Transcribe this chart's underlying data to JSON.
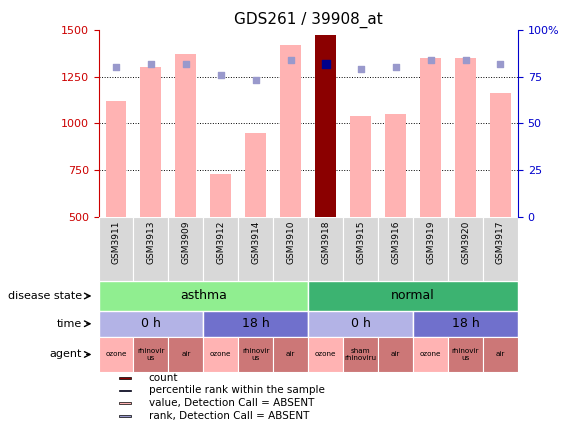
{
  "title": "GDS261 / 39908_at",
  "samples": [
    "GSM3911",
    "GSM3913",
    "GSM3909",
    "GSM3912",
    "GSM3914",
    "GSM3910",
    "GSM3918",
    "GSM3915",
    "GSM3916",
    "GSM3919",
    "GSM3920",
    "GSM3917"
  ],
  "bar_values": [
    1120,
    1300,
    1370,
    730,
    950,
    1420,
    1470,
    1040,
    1050,
    1350,
    1350,
    1160
  ],
  "rank_values": [
    80,
    82,
    82,
    76,
    73,
    84,
    82,
    79,
    80,
    84,
    84,
    82
  ],
  "highlight_index": 6,
  "bar_color_normal": "#ffb3b3",
  "bar_color_highlight": "#8B0000",
  "rank_color_normal": "#9999cc",
  "rank_color_highlight": "#00008B",
  "ylim_left": [
    500,
    1500
  ],
  "ylim_right": [
    0,
    100
  ],
  "yticks_left": [
    500,
    750,
    1000,
    1250,
    1500
  ],
  "yticks_right": [
    0,
    25,
    50,
    75,
    100
  ],
  "disease_state_blocks": [
    {
      "label": "asthma",
      "start": 0,
      "end": 6,
      "color": "#90EE90"
    },
    {
      "label": "normal",
      "start": 6,
      "end": 12,
      "color": "#3CB371"
    }
  ],
  "time_blocks": [
    {
      "label": "0 h",
      "start": 0,
      "end": 3,
      "color": "#b3b3e6"
    },
    {
      "label": "18 h",
      "start": 3,
      "end": 6,
      "color": "#7070cc"
    },
    {
      "label": "0 h",
      "start": 6,
      "end": 9,
      "color": "#b3b3e6"
    },
    {
      "label": "18 h",
      "start": 9,
      "end": 12,
      "color": "#7070cc"
    }
  ],
  "agent_blocks": [
    {
      "label": "ozone",
      "start": 0,
      "end": 1,
      "color": "#ffb3b3"
    },
    {
      "label": "rhinovir\nus",
      "start": 1,
      "end": 2,
      "color": "#cc7777"
    },
    {
      "label": "air",
      "start": 2,
      "end": 3,
      "color": "#cc7777"
    },
    {
      "label": "ozone",
      "start": 3,
      "end": 4,
      "color": "#ffb3b3"
    },
    {
      "label": "rhinovir\nus",
      "start": 4,
      "end": 5,
      "color": "#cc7777"
    },
    {
      "label": "air",
      "start": 5,
      "end": 6,
      "color": "#cc7777"
    },
    {
      "label": "ozone",
      "start": 6,
      "end": 7,
      "color": "#ffb3b3"
    },
    {
      "label": "sham\nrhinoviru",
      "start": 7,
      "end": 8,
      "color": "#cc7777"
    },
    {
      "label": "air",
      "start": 8,
      "end": 9,
      "color": "#cc7777"
    },
    {
      "label": "ozone",
      "start": 9,
      "end": 10,
      "color": "#ffb3b3"
    },
    {
      "label": "rhinovir\nus",
      "start": 10,
      "end": 11,
      "color": "#cc7777"
    },
    {
      "label": "air",
      "start": 11,
      "end": 12,
      "color": "#cc7777"
    }
  ],
  "legend_items": [
    {
      "color": "#8B0000",
      "label": "count"
    },
    {
      "color": "#00008B",
      "label": "percentile rank within the sample"
    },
    {
      "color": "#ffb3b3",
      "label": "value, Detection Call = ABSENT"
    },
    {
      "color": "#9999cc",
      "label": "rank, Detection Call = ABSENT"
    }
  ],
  "left_labels": [
    {
      "row": "disease",
      "text": "disease state"
    },
    {
      "row": "time",
      "text": "time"
    },
    {
      "row": "agent",
      "text": "agent"
    }
  ],
  "ylabel_left_color": "#cc0000",
  "ylabel_right_color": "#0000cc",
  "n_samples": 12
}
